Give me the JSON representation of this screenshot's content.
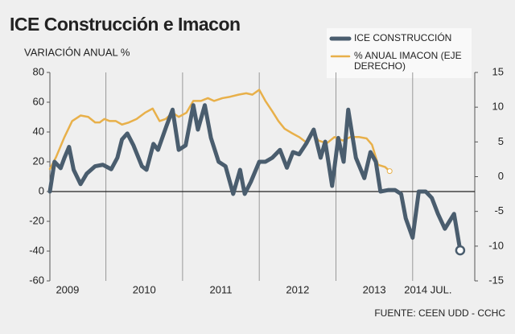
{
  "chart_data": {
    "type": "line",
    "title": "ICE Construcción e Imacon",
    "subtitle": "VARIACIÓN ANUAL %",
    "source": "FUENTE: CEEN UDD - CCHC",
    "xlim": [
      2009.27,
      2014.81
    ],
    "xticks": [
      {
        "value": 2009.5,
        "label": "2009"
      },
      {
        "value": 2010.5,
        "label": "2010"
      },
      {
        "value": 2011.5,
        "label": "2011"
      },
      {
        "value": 2012.5,
        "label": "2012"
      },
      {
        "value": 2013.5,
        "label": "2013"
      },
      {
        "value": 2014.2,
        "label": "2014 JUL."
      }
    ],
    "ylim": [
      -60,
      80
    ],
    "yticks": [
      -60,
      -40,
      -20,
      0,
      20,
      40,
      60,
      80
    ],
    "y2lim": [
      -15,
      15
    ],
    "y2ticks": [
      -15,
      -10,
      -5,
      0,
      5,
      10,
      15
    ],
    "series": [
      {
        "name": "ICE CONSTRUCCIÓN",
        "color": "#4a5d6e",
        "x": [
          2009.27,
          2009.33,
          2009.41,
          2009.46,
          2009.52,
          2009.58,
          2009.67,
          2009.75,
          2009.86,
          2009.96,
          2010.07,
          2010.15,
          2010.21,
          2010.28,
          2010.36,
          2010.47,
          2010.53,
          2010.62,
          2010.68,
          2010.79,
          2010.87,
          2010.95,
          2011.04,
          2011.14,
          2011.2,
          2011.29,
          2011.37,
          2011.47,
          2011.56,
          2011.66,
          2011.75,
          2011.81,
          2011.89,
          2012.0,
          2012.08,
          2012.17,
          2012.27,
          2012.36,
          2012.44,
          2012.52,
          2012.61,
          2012.71,
          2012.8,
          2012.86,
          2012.95,
          2013.03,
          2013.1,
          2013.16,
          2013.26,
          2013.37,
          2013.45,
          2013.52,
          2013.58,
          2013.68,
          2013.77,
          2013.85,
          2013.91,
          2014.0,
          2014.08,
          2014.17,
          2014.25,
          2014.33,
          2014.42,
          2014.48,
          2014.54,
          2014.62
        ],
        "values": [
          0,
          20,
          15.7,
          22.7,
          30,
          14.6,
          5,
          12,
          17,
          18,
          15,
          22.7,
          35,
          39,
          31,
          17,
          14.6,
          32,
          28,
          44,
          55,
          28,
          31,
          58,
          41.6,
          58,
          36,
          20,
          17,
          -1.6,
          14.6,
          -1.6,
          6.5,
          20,
          20,
          22.7,
          28,
          16,
          26.5,
          25,
          32,
          41.6,
          22.7,
          33.5,
          3.8,
          36,
          20,
          55,
          22.7,
          9,
          26.5,
          20,
          0,
          1,
          1,
          -1.6,
          -18,
          -31,
          0,
          0,
          -4.3,
          -15,
          -25,
          -20,
          -15,
          -39.5
        ]
      },
      {
        "name": "% ANUAL IMACON (EJE DERECHO)",
        "color": "#e8b04a",
        "axis": "y2",
        "x": [
          2009.27,
          2009.35,
          2009.46,
          2009.56,
          2009.67,
          2009.77,
          2009.86,
          2009.92,
          2009.98,
          2010.05,
          2010.13,
          2010.21,
          2010.3,
          2010.4,
          2010.51,
          2010.61,
          2010.7,
          2010.78,
          2010.87,
          2010.95,
          2011.05,
          2011.14,
          2011.24,
          2011.33,
          2011.41,
          2011.52,
          2011.62,
          2011.73,
          2011.83,
          2011.91,
          2012.0,
          2012.08,
          2012.17,
          2012.25,
          2012.33,
          2012.42,
          2012.52,
          2012.63,
          2012.69,
          2012.77,
          2012.88,
          2012.98,
          2013.09,
          2013.19,
          2013.3,
          2013.4,
          2013.47,
          2013.55,
          2013.64,
          2013.7
        ],
        "values": [
          1.1,
          2.8,
          5.7,
          8.0,
          8.8,
          8.6,
          7.8,
          7.8,
          8.3,
          8.0,
          8.0,
          7.5,
          7.8,
          8.3,
          9.2,
          9.8,
          8.0,
          8.3,
          9.2,
          8.6,
          9.2,
          10.9,
          10.9,
          11.3,
          10.9,
          11.3,
          11.5,
          11.8,
          12.0,
          11.8,
          12.5,
          10.9,
          9.4,
          8.0,
          6.9,
          6.3,
          5.7,
          4.8,
          6.7,
          5.2,
          4.8,
          5.7,
          5.2,
          5.7,
          5.7,
          5.5,
          4.6,
          1.7,
          1.4,
          0.8
        ]
      }
    ]
  }
}
